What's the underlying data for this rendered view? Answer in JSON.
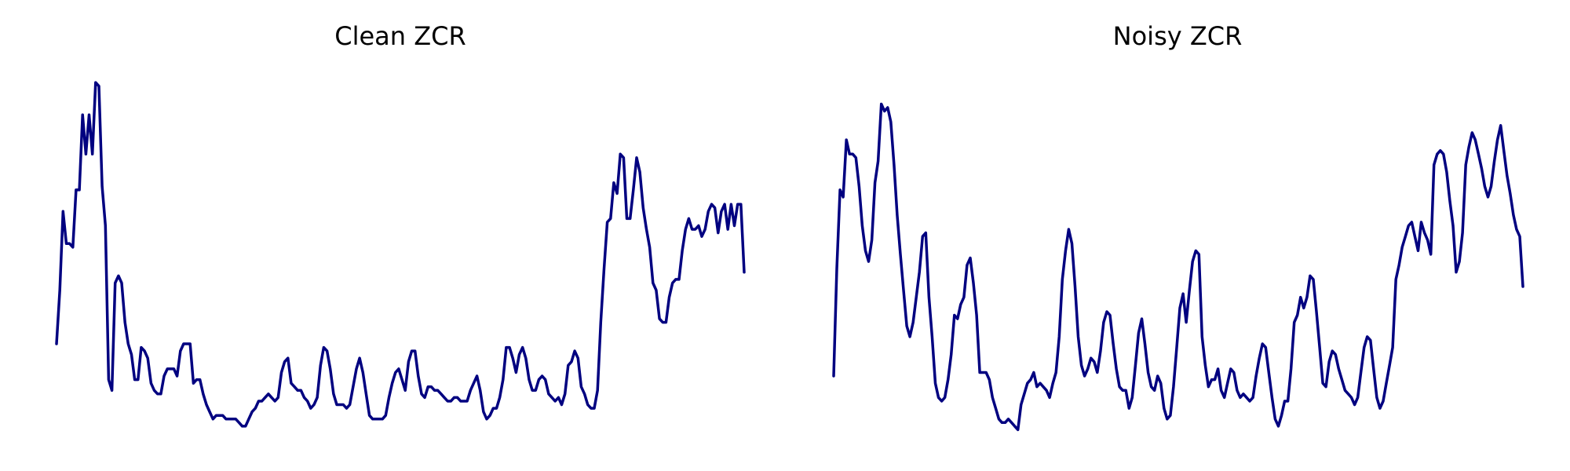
{
  "line_color": "#000080",
  "background": "#ffffff",
  "chart_data": [
    {
      "type": "line",
      "title": "Clean ZCR",
      "axes_visible": false,
      "grid": false,
      "xlabel": "",
      "ylabel": "",
      "ylim": [
        0,
        1
      ],
      "values": [
        0.25,
        0.4,
        0.62,
        0.53,
        0.53,
        0.52,
        0.68,
        0.68,
        0.89,
        0.78,
        0.89,
        0.78,
        0.98,
        0.97,
        0.69,
        0.58,
        0.15,
        0.12,
        0.42,
        0.44,
        0.42,
        0.31,
        0.25,
        0.22,
        0.15,
        0.15,
        0.24,
        0.23,
        0.21,
        0.14,
        0.12,
        0.11,
        0.11,
        0.16,
        0.18,
        0.18,
        0.18,
        0.16,
        0.23,
        0.25,
        0.25,
        0.25,
        0.14,
        0.15,
        0.15,
        0.11,
        0.08,
        0.06,
        0.04,
        0.05,
        0.05,
        0.05,
        0.04,
        0.04,
        0.04,
        0.04,
        0.03,
        0.02,
        0.02,
        0.04,
        0.06,
        0.07,
        0.09,
        0.09,
        0.1,
        0.11,
        0.1,
        0.09,
        0.1,
        0.17,
        0.2,
        0.21,
        0.14,
        0.13,
        0.12,
        0.12,
        0.1,
        0.09,
        0.07,
        0.08,
        0.1,
        0.19,
        0.24,
        0.23,
        0.18,
        0.11,
        0.08,
        0.08,
        0.08,
        0.07,
        0.08,
        0.13,
        0.18,
        0.21,
        0.17,
        0.11,
        0.05,
        0.04,
        0.04,
        0.04,
        0.04,
        0.05,
        0.1,
        0.14,
        0.17,
        0.18,
        0.15,
        0.12,
        0.2,
        0.23,
        0.23,
        0.16,
        0.11,
        0.1,
        0.13,
        0.13,
        0.12,
        0.12,
        0.11,
        0.1,
        0.09,
        0.09,
        0.1,
        0.1,
        0.09,
        0.09,
        0.09,
        0.12,
        0.14,
        0.16,
        0.12,
        0.06,
        0.04,
        0.05,
        0.07,
        0.07,
        0.1,
        0.15,
        0.24,
        0.24,
        0.21,
        0.17,
        0.22,
        0.24,
        0.21,
        0.15,
        0.12,
        0.12,
        0.15,
        0.16,
        0.15,
        0.11,
        0.1,
        0.09,
        0.1,
        0.08,
        0.11,
        0.19,
        0.2,
        0.23,
        0.21,
        0.13,
        0.11,
        0.08,
        0.07,
        0.07,
        0.12,
        0.31,
        0.46,
        0.59,
        0.6,
        0.7,
        0.67,
        0.78,
        0.77,
        0.6,
        0.6,
        0.68,
        0.77,
        0.73,
        0.63,
        0.57,
        0.52,
        0.42,
        0.4,
        0.32,
        0.31,
        0.31,
        0.38,
        0.42,
        0.43,
        0.43,
        0.51,
        0.57,
        0.6,
        0.57,
        0.57,
        0.58,
        0.55,
        0.57,
        0.62,
        0.64,
        0.63,
        0.56,
        0.62,
        0.64,
        0.57,
        0.64,
        0.58,
        0.64,
        0.64,
        0.45
      ]
    },
    {
      "type": "line",
      "title": "Noisy ZCR",
      "axes_visible": false,
      "grid": false,
      "xlabel": "",
      "ylabel": "",
      "ylim": [
        0,
        1
      ],
      "values": [
        0.16,
        0.46,
        0.68,
        0.66,
        0.82,
        0.78,
        0.78,
        0.77,
        0.69,
        0.58,
        0.51,
        0.48,
        0.54,
        0.7,
        0.76,
        0.92,
        0.9,
        0.91,
        0.87,
        0.75,
        0.61,
        0.5,
        0.4,
        0.3,
        0.27,
        0.31,
        0.38,
        0.45,
        0.55,
        0.56,
        0.38,
        0.27,
        0.14,
        0.1,
        0.09,
        0.1,
        0.15,
        0.22,
        0.33,
        0.32,
        0.36,
        0.38,
        0.47,
        0.49,
        0.42,
        0.33,
        0.17,
        0.17,
        0.17,
        0.15,
        0.1,
        0.07,
        0.04,
        0.03,
        0.03,
        0.04,
        0.03,
        0.02,
        0.01,
        0.08,
        0.11,
        0.14,
        0.15,
        0.17,
        0.13,
        0.14,
        0.13,
        0.12,
        0.1,
        0.14,
        0.17,
        0.27,
        0.43,
        0.51,
        0.57,
        0.53,
        0.41,
        0.27,
        0.19,
        0.16,
        0.18,
        0.21,
        0.2,
        0.17,
        0.23,
        0.31,
        0.34,
        0.33,
        0.25,
        0.18,
        0.13,
        0.12,
        0.12,
        0.07,
        0.1,
        0.19,
        0.28,
        0.32,
        0.25,
        0.17,
        0.13,
        0.12,
        0.16,
        0.14,
        0.07,
        0.04,
        0.05,
        0.13,
        0.24,
        0.35,
        0.39,
        0.31,
        0.4,
        0.48,
        0.51,
        0.5,
        0.27,
        0.19,
        0.13,
        0.15,
        0.15,
        0.18,
        0.12,
        0.1,
        0.14,
        0.18,
        0.17,
        0.12,
        0.1,
        0.11,
        0.1,
        0.09,
        0.1,
        0.16,
        0.21,
        0.25,
        0.24,
        0.17,
        0.1,
        0.04,
        0.02,
        0.05,
        0.09,
        0.09,
        0.18,
        0.31,
        0.33,
        0.38,
        0.35,
        0.38,
        0.44,
        0.43,
        0.34,
        0.24,
        0.14,
        0.13,
        0.2,
        0.23,
        0.22,
        0.18,
        0.15,
        0.12,
        0.11,
        0.1,
        0.08,
        0.1,
        0.17,
        0.24,
        0.27,
        0.26,
        0.18,
        0.1,
        0.07,
        0.09,
        0.14,
        0.19,
        0.24,
        0.43,
        0.47,
        0.52,
        0.55,
        0.58,
        0.59,
        0.55,
        0.51,
        0.59,
        0.56,
        0.54,
        0.5,
        0.75,
        0.78,
        0.79,
        0.78,
        0.73,
        0.65,
        0.58,
        0.45,
        0.48,
        0.56,
        0.75,
        0.8,
        0.84,
        0.82,
        0.78,
        0.74,
        0.69,
        0.66,
        0.69,
        0.76,
        0.82,
        0.86,
        0.79,
        0.72,
        0.67,
        0.61,
        0.57,
        0.55,
        0.41
      ]
    }
  ]
}
